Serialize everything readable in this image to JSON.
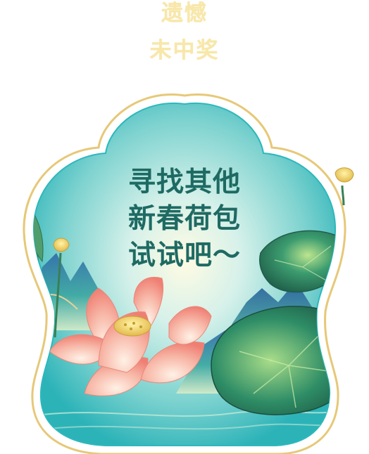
{
  "result": {
    "title_line1": "遗憾",
    "title_line2": "未中奖",
    "message_lines": [
      "寻找其他",
      "新春荷包",
      "试试吧～"
    ]
  },
  "illustration": {
    "icons": [
      "frame-icon",
      "lotus-flower-icon",
      "lotus-leaf-icon",
      "lotus-pod-icon",
      "mountain-icon"
    ],
    "colors": {
      "title": "#f8e7a8",
      "message": "#1e6a63",
      "frame_gold": "#e6c878",
      "frame_teal": "#2cb8bc",
      "lotus_pink": "#f29a8c",
      "leaf_green": "#2f8e6a"
    }
  }
}
